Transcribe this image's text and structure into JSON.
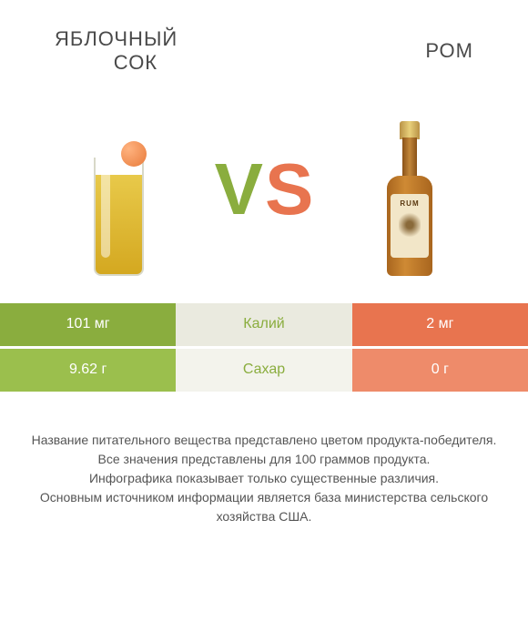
{
  "left_product": {
    "title": "ЯБЛОЧНЫЙ\n      СОК",
    "color": "#8aad3e"
  },
  "right_product": {
    "title": "РОМ",
    "color": "#e8744f"
  },
  "vs": {
    "v_color": "#8aad3e",
    "s_color": "#e8744f"
  },
  "table": {
    "left_dark": "#8aad3e",
    "left_light": "#9bbf4d",
    "mid_dark": "#eaeadf",
    "mid_light": "#f3f3ec",
    "right_dark": "#e8744f",
    "right_light": "#ee8b6a",
    "mid_text_color_row1": "#8aad3e",
    "mid_text_color_row2": "#8aad3e",
    "rows": [
      {
        "left": "101 мг",
        "mid": "Калий",
        "right": "2 мг"
      },
      {
        "left": "9.62 г",
        "mid": "Сахар",
        "right": "0 г"
      }
    ]
  },
  "footnote": "Название питательного вещества представлено цветом продукта-победителя.\nВсе значения представлены для 100 граммов продукта.\nИнфографика показывает только существенные различия.\nОсновным источником информации является база министерства сельского хозяйства США.",
  "bottle_label": "RUM"
}
